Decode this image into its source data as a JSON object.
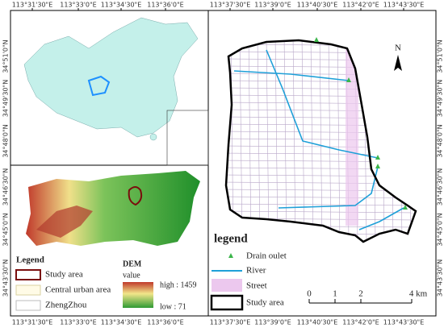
{
  "axes": {
    "top": [
      "113°31'30\"E",
      "113°33'0\"E",
      "113°34'30\"E",
      "113°36'0\"E",
      "113°37'30\"E",
      "113°39'0\"E",
      "113°40'30\"E",
      "113°42'0\"E",
      "113°43'30\"E"
    ],
    "bottom": [
      "113°31'30\"E",
      "113°33'0\"E",
      "113°34'30\"E",
      "113°36'0\"E",
      "113°37'30\"E",
      "113°39'0\"E",
      "113°40'30\"E",
      "113°42'0\"E",
      "113°43'30\"E"
    ],
    "left": [
      "34°51'0\"N",
      "34°49'30\"N",
      "34°48'0\"N",
      "34°46'30\"N",
      "34°45'0\"N",
      "34°43'30\"N"
    ],
    "right": [
      "34°51'0\"N",
      "34°49'30\"N",
      "34°48'0\"N",
      "34°46'30\"N",
      "34°45'0\"N",
      "34°43'30\"N"
    ]
  },
  "north": "N",
  "inset_legend": {
    "title": "Legend",
    "items": [
      "Study area",
      "Central urban area",
      "ZhengZhou"
    ],
    "dem_title": "DEM",
    "dem_subtitle": "value",
    "high": "high : 1459",
    "low": "low : 71"
  },
  "main_legend": {
    "title": "legend",
    "items": [
      "Drain oulet",
      "River",
      "Street",
      "Study area"
    ]
  },
  "scale_bar": {
    "labels": [
      "0",
      "1",
      "2",
      "4 km"
    ]
  }
}
